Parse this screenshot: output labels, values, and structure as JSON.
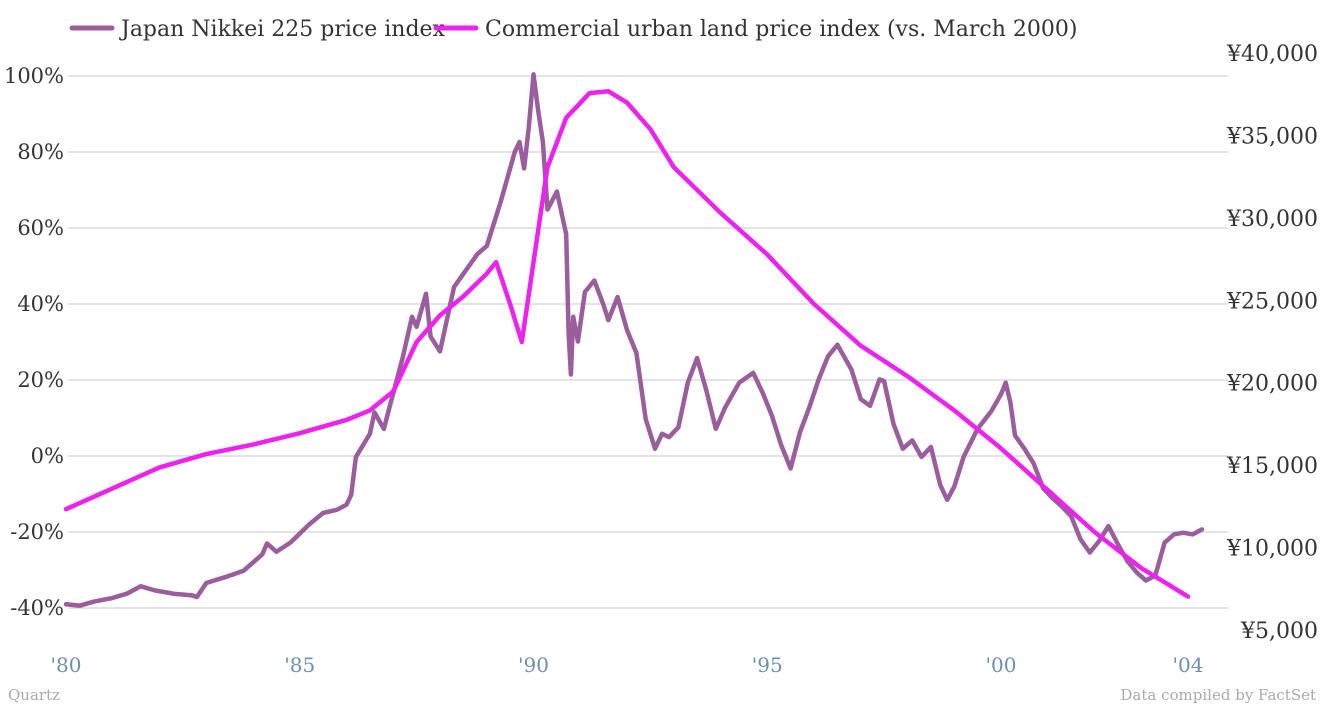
{
  "chart_data": {
    "type": "line",
    "title": "",
    "source_left": "Quartz",
    "source_right": "Data compiled by FactSet",
    "x_axis": {
      "range": [
        1980,
        2004.3
      ],
      "ticks": [
        {
          "value": 1980,
          "label": "'80"
        },
        {
          "value": 1985,
          "label": "'85"
        },
        {
          "value": 1990,
          "label": "'90"
        },
        {
          "value": 1995,
          "label": "'95"
        },
        {
          "value": 2000,
          "label": "'00"
        },
        {
          "value": 2004,
          "label": "'04"
        }
      ]
    },
    "y_left": {
      "range": [
        -40,
        100
      ],
      "ticks": [
        {
          "value": 100,
          "label": "100%"
        },
        {
          "value": 80,
          "label": "80%"
        },
        {
          "value": 60,
          "label": "60%"
        },
        {
          "value": 40,
          "label": "40%"
        },
        {
          "value": 20,
          "label": "20%"
        },
        {
          "value": 0,
          "label": "0%"
        },
        {
          "value": -20,
          "label": "-20%"
        },
        {
          "value": -40,
          "label": "-40%"
        }
      ]
    },
    "y_right": {
      "range": [
        5000,
        40000
      ],
      "ticks": [
        {
          "value": 40000,
          "label": "¥40,000"
        },
        {
          "value": 35000,
          "label": "¥35,000"
        },
        {
          "value": 30000,
          "label": "¥30,000"
        },
        {
          "value": 25000,
          "label": "¥25,000"
        },
        {
          "value": 20000,
          "label": "¥20,000"
        },
        {
          "value": 15000,
          "label": "¥15,000"
        },
        {
          "value": 10000,
          "label": "¥10,000"
        },
        {
          "value": 5000,
          "label": "¥5,000"
        }
      ]
    },
    "grid": true,
    "legend_position": "top-left",
    "series": [
      {
        "name": "Japan Nikkei 225 price index",
        "axis": "right",
        "color": "#9a5e9c",
        "points": [
          [
            1980.0,
            6560
          ],
          [
            1980.3,
            6480
          ],
          [
            1980.6,
            6720
          ],
          [
            1981.0,
            6950
          ],
          [
            1981.3,
            7200
          ],
          [
            1981.6,
            7650
          ],
          [
            1981.9,
            7400
          ],
          [
            1982.3,
            7200
          ],
          [
            1982.7,
            7100
          ],
          [
            1982.8,
            7000
          ],
          [
            1983.0,
            7850
          ],
          [
            1983.4,
            8200
          ],
          [
            1983.8,
            8600
          ],
          [
            1984.2,
            9600
          ],
          [
            1984.3,
            10250
          ],
          [
            1984.5,
            9750
          ],
          [
            1984.8,
            10300
          ],
          [
            1985.2,
            11400
          ],
          [
            1985.5,
            12100
          ],
          [
            1985.8,
            12300
          ],
          [
            1986.0,
            12600
          ],
          [
            1986.1,
            13200
          ],
          [
            1986.2,
            15500
          ],
          [
            1986.5,
            16900
          ],
          [
            1986.6,
            18200
          ],
          [
            1986.8,
            17200
          ],
          [
            1986.9,
            18300
          ],
          [
            1987.2,
            21500
          ],
          [
            1987.4,
            24000
          ],
          [
            1987.5,
            23400
          ],
          [
            1987.7,
            25400
          ],
          [
            1987.8,
            22800
          ],
          [
            1988.0,
            21900
          ],
          [
            1988.3,
            25800
          ],
          [
            1988.6,
            27000
          ],
          [
            1988.8,
            27800
          ],
          [
            1989.0,
            28300
          ],
          [
            1989.3,
            31000
          ],
          [
            1989.6,
            34000
          ],
          [
            1989.7,
            34600
          ],
          [
            1989.8,
            33000
          ],
          [
            1989.9,
            35500
          ],
          [
            1990.0,
            38700
          ],
          [
            1990.1,
            36500
          ],
          [
            1990.2,
            34600
          ],
          [
            1990.3,
            30500
          ],
          [
            1990.5,
            31600
          ],
          [
            1990.7,
            29000
          ],
          [
            1990.75,
            23000
          ],
          [
            1990.8,
            20500
          ],
          [
            1990.85,
            24000
          ],
          [
            1990.95,
            22500
          ],
          [
            1991.1,
            25500
          ],
          [
            1991.3,
            26200
          ],
          [
            1991.5,
            24700
          ],
          [
            1991.6,
            23800
          ],
          [
            1991.8,
            25200
          ],
          [
            1992.0,
            23200
          ],
          [
            1992.2,
            21800
          ],
          [
            1992.4,
            17800
          ],
          [
            1992.6,
            16000
          ],
          [
            1992.75,
            16900
          ],
          [
            1992.9,
            16700
          ],
          [
            1993.1,
            17300
          ],
          [
            1993.3,
            20000
          ],
          [
            1993.5,
            21500
          ],
          [
            1993.7,
            19500
          ],
          [
            1993.9,
            17200
          ],
          [
            1994.1,
            18500
          ],
          [
            1994.4,
            20000
          ],
          [
            1994.7,
            20600
          ],
          [
            1994.9,
            19400
          ],
          [
            1995.1,
            18000
          ],
          [
            1995.3,
            16200
          ],
          [
            1995.5,
            14800
          ],
          [
            1995.7,
            17000
          ],
          [
            1995.9,
            18500
          ],
          [
            1996.1,
            20200
          ],
          [
            1996.3,
            21600
          ],
          [
            1996.5,
            22300
          ],
          [
            1996.8,
            20800
          ],
          [
            1997.0,
            19000
          ],
          [
            1997.2,
            18600
          ],
          [
            1997.4,
            20200
          ],
          [
            1997.5,
            20100
          ],
          [
            1997.7,
            17500
          ],
          [
            1997.9,
            16000
          ],
          [
            1998.1,
            16500
          ],
          [
            1998.3,
            15500
          ],
          [
            1998.5,
            16100
          ],
          [
            1998.7,
            13800
          ],
          [
            1998.85,
            12900
          ],
          [
            1999.0,
            13700
          ],
          [
            1999.2,
            15500
          ],
          [
            1999.5,
            17200
          ],
          [
            1999.8,
            18300
          ],
          [
            2000.0,
            19300
          ],
          [
            2000.1,
            20000
          ],
          [
            2000.2,
            18800
          ],
          [
            2000.3,
            16800
          ],
          [
            2000.5,
            16000
          ],
          [
            2000.7,
            15100
          ],
          [
            2000.9,
            13600
          ],
          [
            2001.1,
            13000
          ],
          [
            2001.3,
            12500
          ],
          [
            2001.5,
            11900
          ],
          [
            2001.7,
            10500
          ],
          [
            2001.9,
            9700
          ],
          [
            2002.1,
            10400
          ],
          [
            2002.3,
            11300
          ],
          [
            2002.5,
            10200
          ],
          [
            2002.7,
            9200
          ],
          [
            2002.9,
            8500
          ],
          [
            2003.1,
            8000
          ],
          [
            2003.3,
            8300
          ],
          [
            2003.5,
            10300
          ],
          [
            2003.7,
            10800
          ],
          [
            2003.9,
            10900
          ],
          [
            2004.1,
            10800
          ],
          [
            2004.3,
            11100
          ]
        ]
      },
      {
        "name": "Commercial urban land price index (vs. March 2000)",
        "axis": "left",
        "color": "#ee22ee",
        "points": [
          [
            1980.0,
            -14
          ],
          [
            1981.0,
            -8.5
          ],
          [
            1982.0,
            -3
          ],
          [
            1983.0,
            0.5
          ],
          [
            1984.0,
            3
          ],
          [
            1985.0,
            6
          ],
          [
            1986.0,
            9.5
          ],
          [
            1986.5,
            12
          ],
          [
            1987.0,
            17
          ],
          [
            1987.5,
            30
          ],
          [
            1988.0,
            37
          ],
          [
            1988.5,
            42
          ],
          [
            1989.0,
            48
          ],
          [
            1989.2,
            51
          ],
          [
            1989.5,
            40
          ],
          [
            1989.75,
            30
          ],
          [
            1990.0,
            51
          ],
          [
            1990.3,
            76
          ],
          [
            1990.7,
            89
          ],
          [
            1991.2,
            95.5
          ],
          [
            1991.6,
            96
          ],
          [
            1992.0,
            93
          ],
          [
            1992.5,
            86
          ],
          [
            1993.0,
            76
          ],
          [
            1994.0,
            64
          ],
          [
            1995.0,
            53
          ],
          [
            1996.0,
            40
          ],
          [
            1997.0,
            29
          ],
          [
            1998.0,
            21
          ],
          [
            1999.0,
            12
          ],
          [
            2000.0,
            2
          ],
          [
            2001.0,
            -9
          ],
          [
            2002.0,
            -20
          ],
          [
            2003.0,
            -29.5
          ],
          [
            2004.0,
            -37
          ]
        ]
      }
    ]
  }
}
